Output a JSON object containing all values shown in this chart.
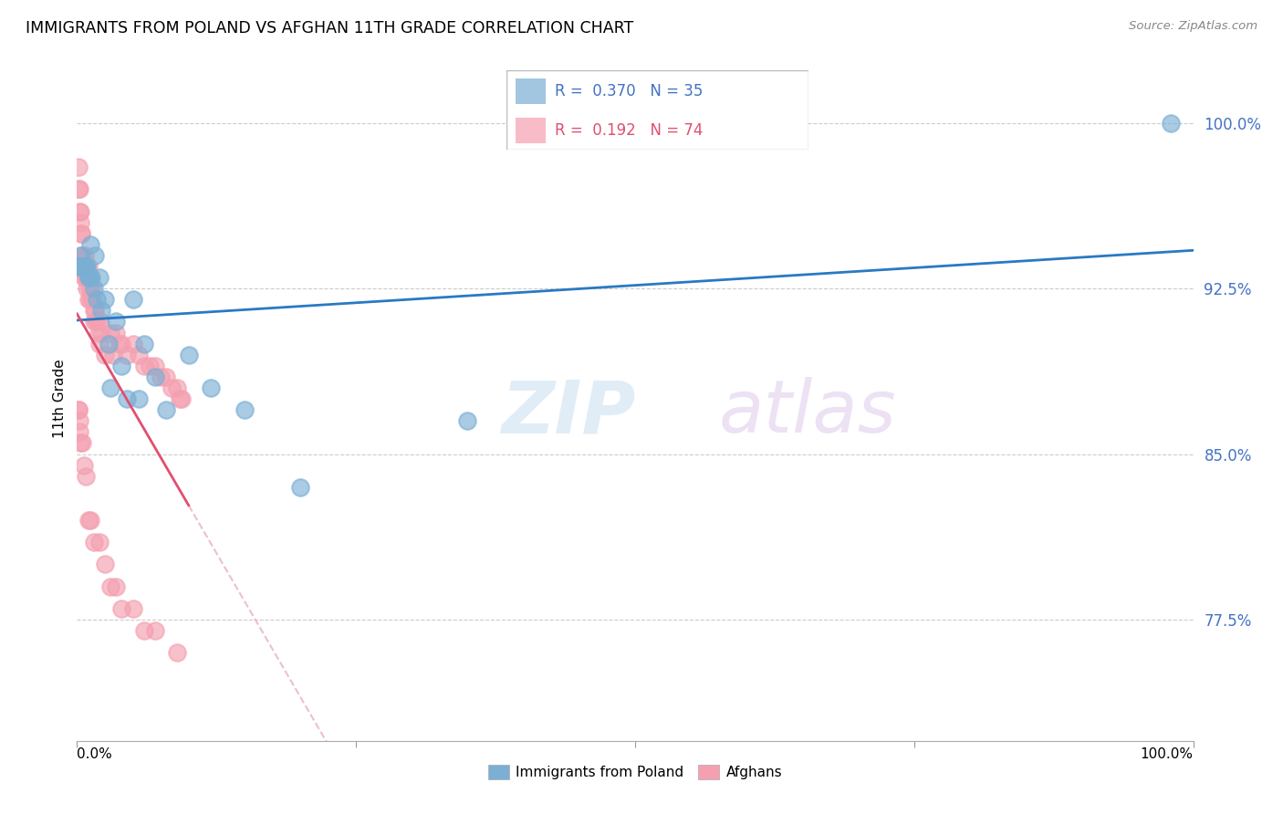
{
  "title": "IMMIGRANTS FROM POLAND VS AFGHAN 11TH GRADE CORRELATION CHART",
  "source": "Source: ZipAtlas.com",
  "ylabel": "11th Grade",
  "xlim": [
    0.0,
    100.0
  ],
  "ylim": [
    0.72,
    1.03
  ],
  "y_ticks": [
    0.775,
    0.85,
    0.925,
    1.0
  ],
  "y_tick_labels": [
    "77.5%",
    "85.0%",
    "92.5%",
    "100.0%"
  ],
  "watermark_zip": "ZIP",
  "watermark_atlas": "atlas",
  "legend_poland_R": "0.370",
  "legend_poland_N": "35",
  "legend_afghan_R": "0.192",
  "legend_afghan_N": "74",
  "poland_color": "#7bafd4",
  "afghan_color": "#f4a0b0",
  "poland_line_color": "#2979c4",
  "afghan_line_color": "#e05070",
  "afghan_dashed_color": "#e8b0bc",
  "grid_color": "#cccccc",
  "tick_color": "#4472c4",
  "poland_points_x": [
    0.1,
    0.2,
    0.3,
    0.4,
    0.5,
    0.6,
    0.7,
    0.8,
    0.9,
    1.0,
    1.1,
    1.2,
    1.3,
    1.5,
    1.6,
    1.8,
    2.0,
    2.2,
    2.5,
    2.8,
    3.0,
    3.5,
    4.0,
    4.5,
    5.0,
    5.5,
    6.0,
    7.0,
    8.0,
    10.0,
    12.0,
    15.0,
    20.0,
    35.0,
    98.0
  ],
  "poland_points_y": [
    0.935,
    0.935,
    0.94,
    0.935,
    0.935,
    0.935,
    0.935,
    0.935,
    0.935,
    0.93,
    0.93,
    0.945,
    0.93,
    0.925,
    0.94,
    0.92,
    0.93,
    0.915,
    0.92,
    0.9,
    0.88,
    0.91,
    0.89,
    0.875,
    0.92,
    0.875,
    0.9,
    0.885,
    0.87,
    0.895,
    0.88,
    0.87,
    0.835,
    0.865,
    1.0
  ],
  "afghan_points_x": [
    0.1,
    0.1,
    0.2,
    0.2,
    0.3,
    0.3,
    0.4,
    0.4,
    0.5,
    0.5,
    0.5,
    0.5,
    0.6,
    0.6,
    0.7,
    0.7,
    0.8,
    0.8,
    0.9,
    0.9,
    1.0,
    1.0,
    1.1,
    1.1,
    1.2,
    1.3,
    1.4,
    1.5,
    1.5,
    1.6,
    1.7,
    1.8,
    1.9,
    2.0,
    2.1,
    2.2,
    2.5,
    3.0,
    3.2,
    3.5,
    3.8,
    4.0,
    4.5,
    5.0,
    5.5,
    6.0,
    6.5,
    7.0,
    7.5,
    8.0,
    8.5,
    9.0,
    9.2,
    9.4,
    0.1,
    0.1,
    0.2,
    0.2,
    0.3,
    0.5,
    0.6,
    0.8,
    1.0,
    1.2,
    1.5,
    2.0,
    2.5,
    3.0,
    3.5,
    4.0,
    5.0,
    6.0,
    7.0,
    9.0
  ],
  "afghan_points_y": [
    0.98,
    0.97,
    0.97,
    0.96,
    0.96,
    0.955,
    0.95,
    0.95,
    0.94,
    0.94,
    0.935,
    0.935,
    0.935,
    0.93,
    0.94,
    0.935,
    0.935,
    0.93,
    0.93,
    0.925,
    0.92,
    0.935,
    0.93,
    0.925,
    0.92,
    0.925,
    0.92,
    0.915,
    0.91,
    0.915,
    0.91,
    0.91,
    0.905,
    0.9,
    0.91,
    0.905,
    0.895,
    0.905,
    0.895,
    0.905,
    0.9,
    0.9,
    0.895,
    0.9,
    0.895,
    0.89,
    0.89,
    0.89,
    0.885,
    0.885,
    0.88,
    0.88,
    0.875,
    0.875,
    0.87,
    0.87,
    0.865,
    0.86,
    0.855,
    0.855,
    0.845,
    0.84,
    0.82,
    0.82,
    0.81,
    0.81,
    0.8,
    0.79,
    0.79,
    0.78,
    0.78,
    0.77,
    0.77,
    0.76
  ]
}
